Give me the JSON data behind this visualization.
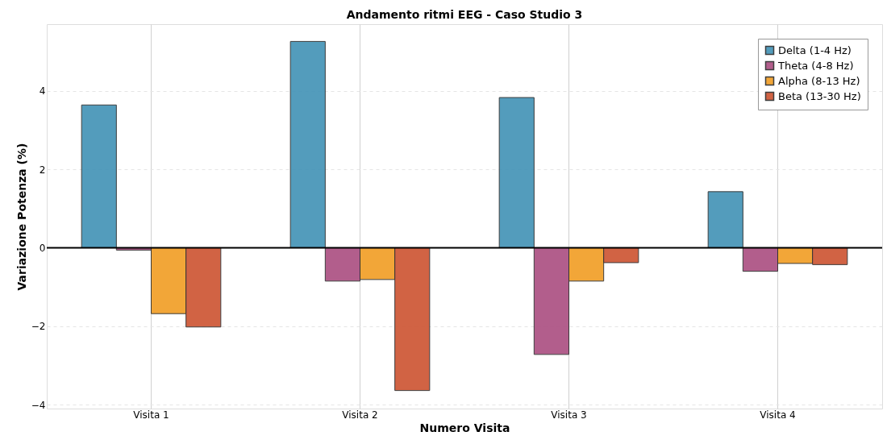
{
  "chart_data": {
    "type": "bar",
    "title": "Andamento ritmi EEG - Caso Studio 3",
    "xlabel": "Numero Visita",
    "ylabel": "Variazione Potenza (%)",
    "categories": [
      "Visita 1",
      "Visita 2",
      "Visita 3",
      "Visita 4"
    ],
    "series": [
      {
        "name": "Delta (1-4 Hz)",
        "color": "#4a97b9",
        "values": [
          3.64,
          5.26,
          3.83,
          1.43
        ]
      },
      {
        "name": "Theta (4-8 Hz)",
        "color": "#ae5686",
        "values": [
          -0.06,
          -0.85,
          -2.72,
          -0.6
        ]
      },
      {
        "name": "Alpha (8-13 Hz)",
        "color": "#f2a22e",
        "values": [
          -1.68,
          -0.81,
          -0.85,
          -0.4
        ]
      },
      {
        "name": "Beta (13-30 Hz)",
        "color": "#cf5b3b",
        "values": [
          -2.02,
          -3.64,
          -0.38,
          -0.43
        ]
      }
    ],
    "ylim": [
      -4.1,
      5.7
    ],
    "yticks": [
      -4,
      -2,
      0,
      2,
      4
    ],
    "grid": true,
    "legend": "top right",
    "ref_lines": [
      {
        "axis": "y",
        "value": 0,
        "color": "#000000"
      }
    ]
  }
}
